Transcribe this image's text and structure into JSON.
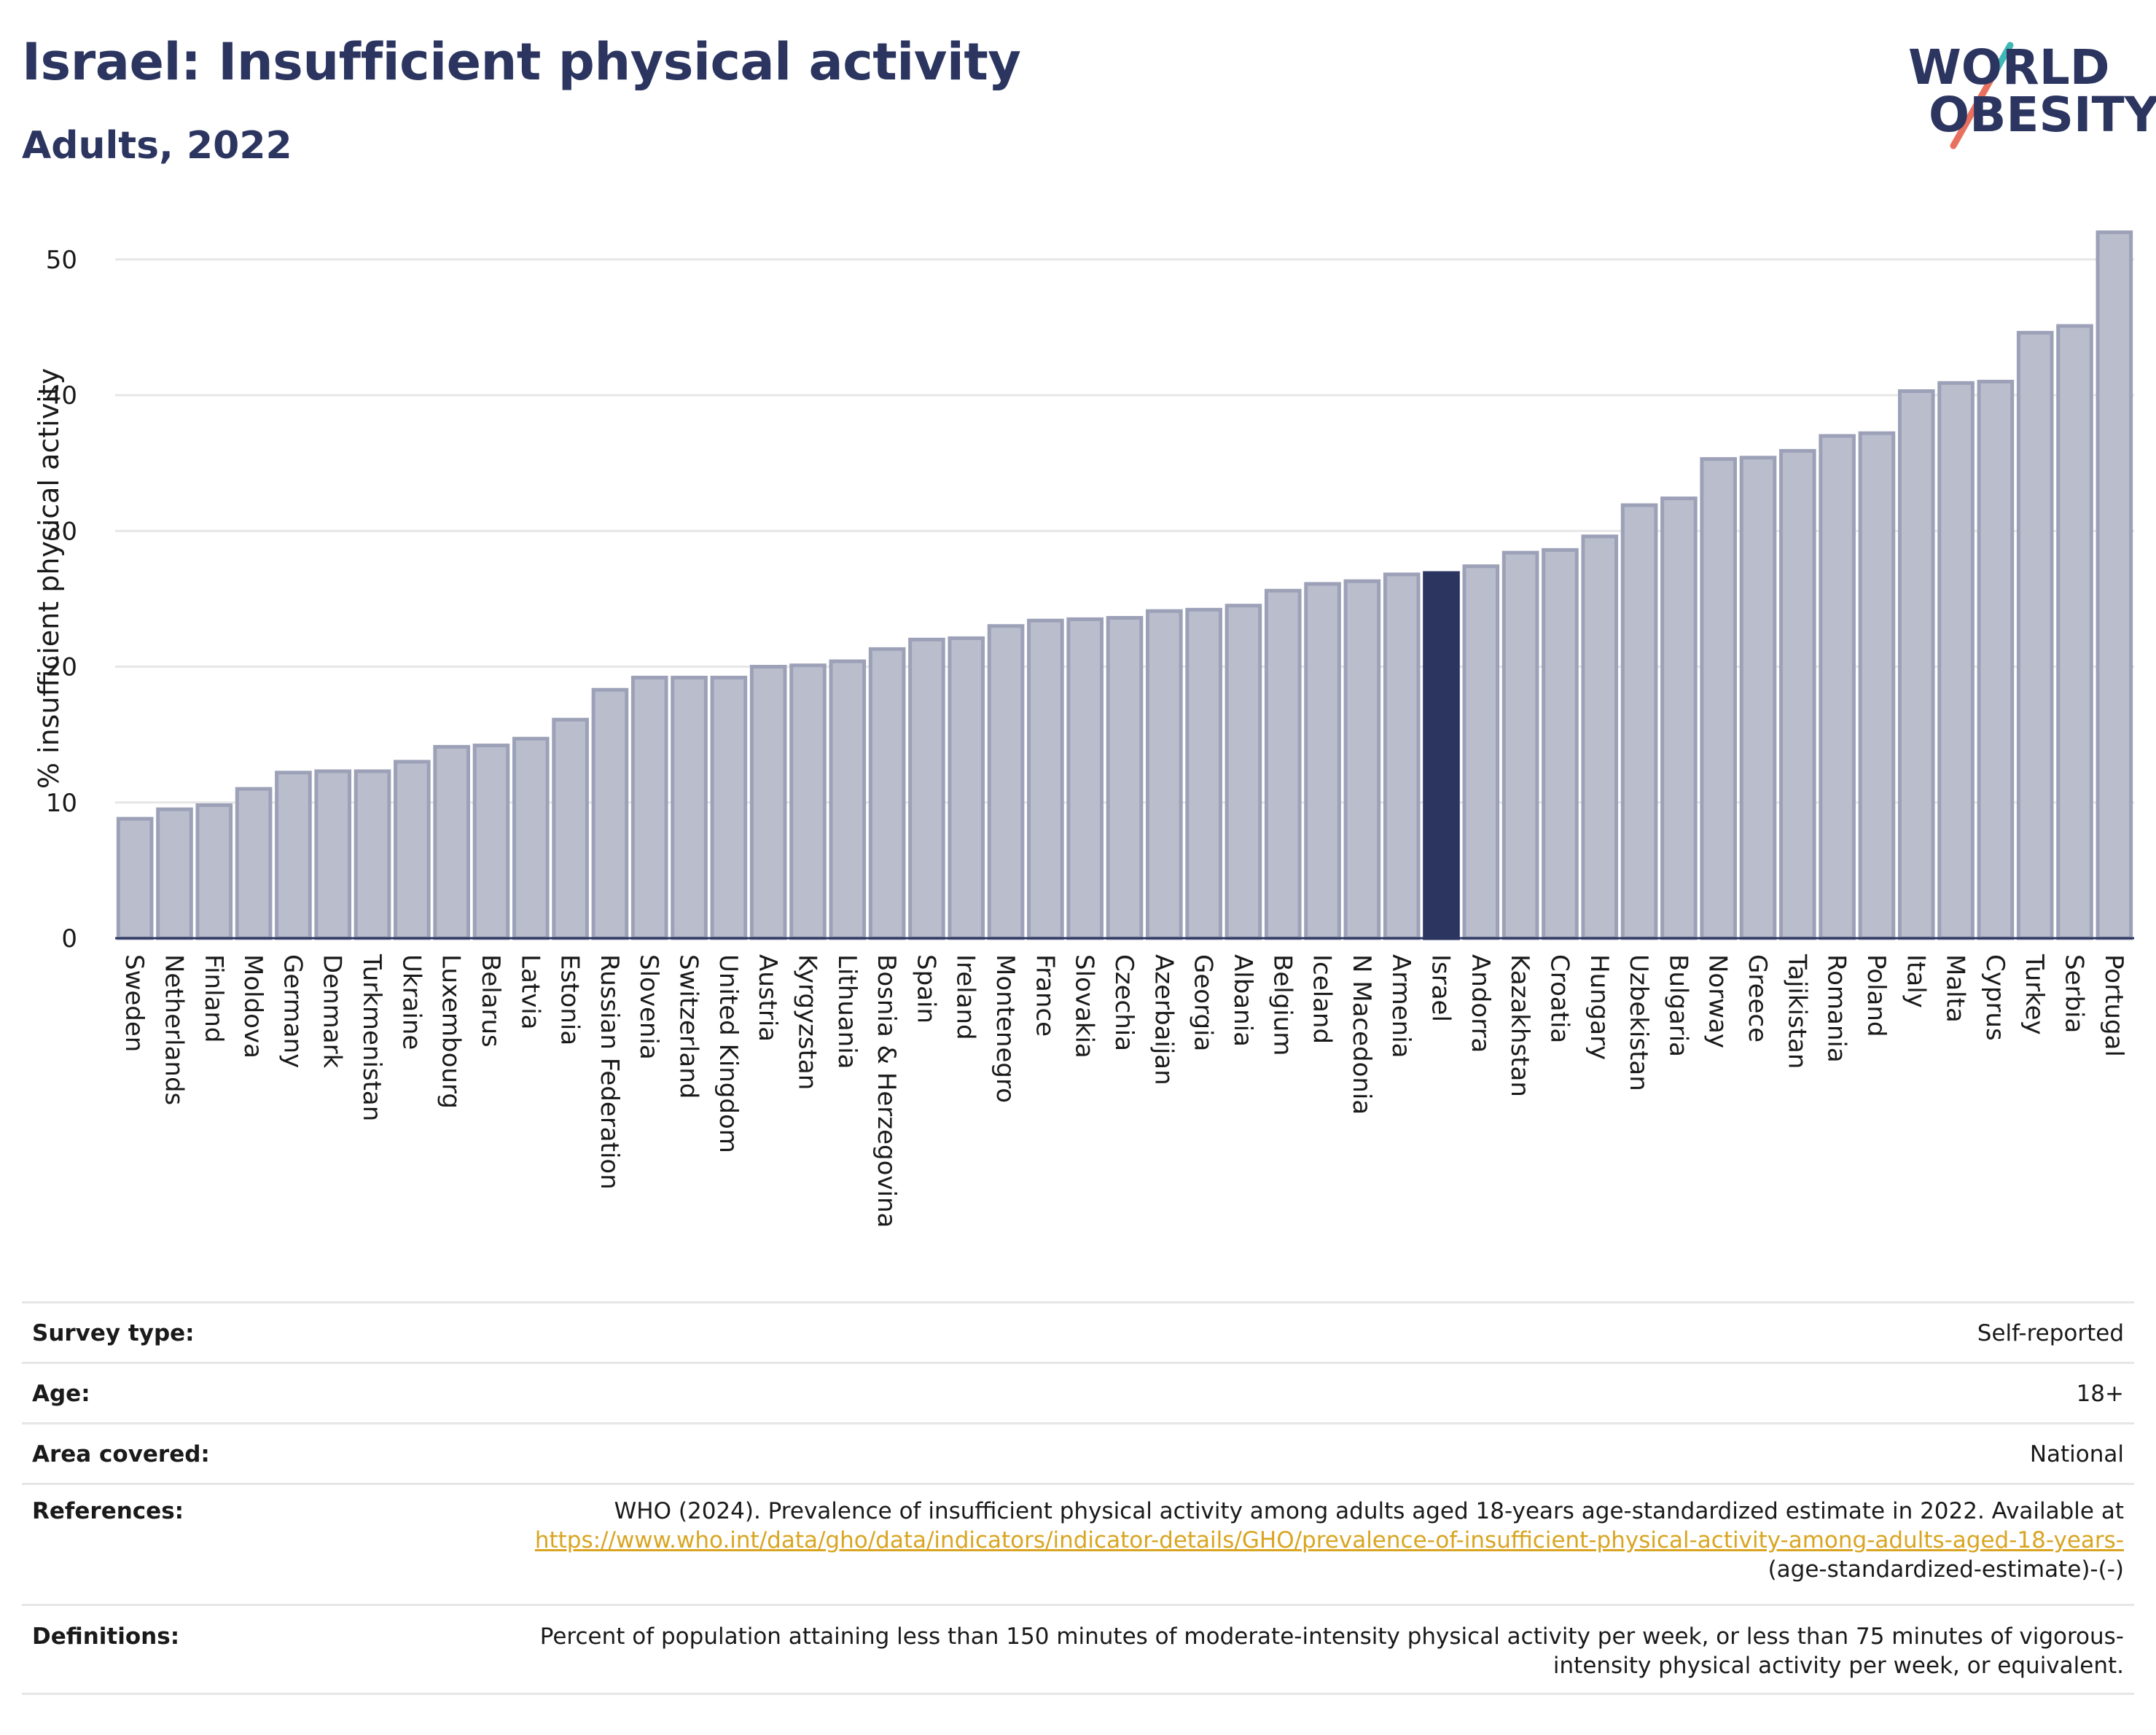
{
  "header": {
    "title": "Israel: Insufficient physical activity",
    "subtitle": "Adults, 2022"
  },
  "logo": {
    "line1": "WORLD",
    "line2": "OBESITY",
    "colors": {
      "text": "#2b3560",
      "slash_teal": "#3fb8b5",
      "slash_coral": "#e8705f"
    }
  },
  "colors": {
    "bar_fill": "#b9bdcc",
    "bar_stroke": "#9ca1b8",
    "highlight_fill": "#2b3560",
    "grid": "#e6e6e6",
    "axis_line": "#2b3560"
  },
  "chart_data": {
    "type": "bar",
    "title": "Israel: Insufficient physical activity",
    "subtitle": "Adults, 2022",
    "xlabel": "",
    "ylabel": "% insufficient physical activity",
    "ylim": [
      0,
      53
    ],
    "yticks": [
      0,
      10,
      20,
      30,
      40,
      50
    ],
    "grid": true,
    "highlight": "Israel",
    "categories": [
      "Sweden",
      "Netherlands",
      "Finland",
      "Moldova",
      "Germany",
      "Denmark",
      "Turkmenistan",
      "Ukraine",
      "Luxembourg",
      "Belarus",
      "Latvia",
      "Estonia",
      "Russian Federation",
      "Slovenia",
      "Switzerland",
      "United Kingdom",
      "Austria",
      "Kyrgyzstan",
      "Lithuania",
      "Bosnia & Herzegovina",
      "Spain",
      "Ireland",
      "Montenegro",
      "France",
      "Slovakia",
      "Czechia",
      "Azerbaijan",
      "Georgia",
      "Albania",
      "Belgium",
      "Iceland",
      "N Macedonia",
      "Armenia",
      "Israel",
      "Andorra",
      "Kazakhstan",
      "Croatia",
      "Hungary",
      "Uzbekistan",
      "Bulgaria",
      "Norway",
      "Greece",
      "Tajikistan",
      "Romania",
      "Poland",
      "Italy",
      "Malta",
      "Cyprus",
      "Turkey",
      "Serbia",
      "Portugal"
    ],
    "values": [
      8.8,
      9.5,
      9.8,
      11.0,
      12.2,
      12.3,
      12.3,
      13.0,
      14.1,
      14.2,
      14.7,
      16.1,
      18.3,
      19.2,
      19.2,
      19.2,
      20.0,
      20.1,
      20.4,
      21.3,
      22.0,
      22.1,
      23.0,
      23.4,
      23.5,
      23.6,
      24.1,
      24.2,
      24.5,
      25.6,
      26.1,
      26.3,
      26.8,
      26.9,
      27.4,
      28.4,
      28.6,
      29.6,
      31.9,
      32.4,
      35.3,
      35.4,
      35.9,
      37.0,
      37.2,
      40.3,
      40.9,
      41.0,
      44.6,
      45.1,
      52.0
    ]
  },
  "details": [
    {
      "label": "Survey type:",
      "value": "Self-reported"
    },
    {
      "label": "Age:",
      "value": "18+"
    },
    {
      "label": "Area covered:",
      "value": "National"
    },
    {
      "label": "References:",
      "value_text": "WHO (2024). Prevalence of insufficient physical activity among adults aged 18-years age-standardized estimate in 2022. Available at",
      "link_text": "https://www.who.int/data/gho/data/indicators/indicator-details/GHO/prevalence-of-insufficient-physical-activity-among-adults-aged-18-years-",
      "link_suffix": "(age-standardized-estimate)-(-)"
    },
    {
      "label": "Definitions:",
      "value": "Percent of population attaining less than 150 minutes of moderate-intensity physical activity per week, or less than 75 minutes of vigorous-intensity physical activity per week, or equivalent."
    }
  ]
}
